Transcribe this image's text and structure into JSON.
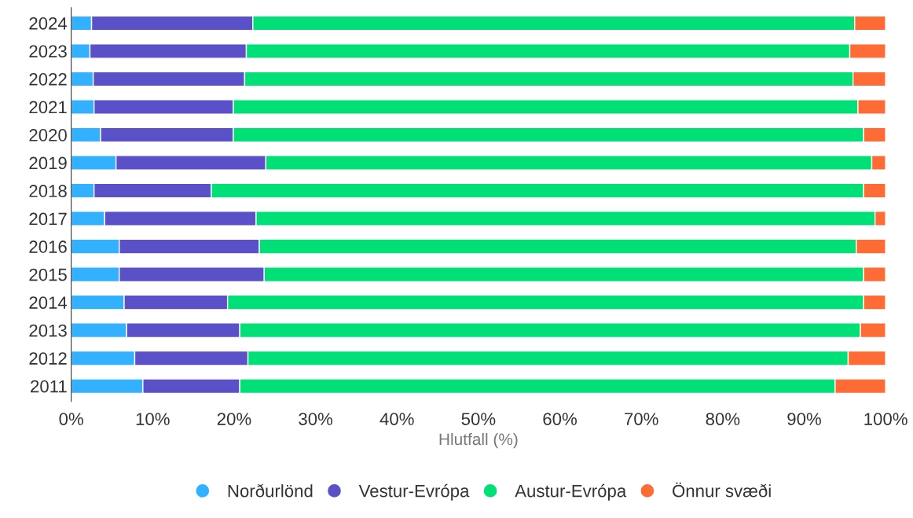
{
  "chart_data": {
    "type": "bar",
    "orientation": "horizontal",
    "stacked": true,
    "xlabel": "Hlutfall (%)",
    "categories": [
      "2024",
      "2023",
      "2022",
      "2021",
      "2020",
      "2019",
      "2018",
      "2017",
      "2016",
      "2015",
      "2014",
      "2013",
      "2012",
      "2011"
    ],
    "series": [
      {
        "name": "Norðurlönd",
        "color": "#33b1ff",
        "values": [
          2.5,
          2.3,
          2.7,
          2.8,
          3.6,
          5.5,
          2.8,
          4.1,
          5.9,
          5.9,
          6.5,
          6.8,
          7.8,
          8.8
        ]
      },
      {
        "name": "Vestur-Evrópa",
        "color": "#5a50c8",
        "values": [
          19.8,
          19.2,
          18.6,
          17.1,
          16.3,
          18.4,
          14.4,
          18.6,
          17.2,
          17.8,
          12.7,
          13.9,
          13.9,
          11.9
        ]
      },
      {
        "name": "Austur-Evrópa",
        "color": "#00e077",
        "values": [
          73.9,
          74.1,
          74.7,
          76.7,
          77.4,
          74.4,
          80.1,
          76.0,
          73.3,
          73.6,
          78.1,
          76.2,
          73.7,
          73.1
        ]
      },
      {
        "name": "Önnur svæði",
        "color": "#ff6b35",
        "values": [
          3.8,
          4.4,
          4.0,
          3.4,
          2.7,
          1.7,
          2.7,
          1.3,
          3.6,
          2.7,
          2.7,
          3.1,
          4.6,
          6.2
        ]
      }
    ],
    "xlim": [
      0,
      100
    ],
    "xticks": [
      {
        "value": 0,
        "label": "0%"
      },
      {
        "value": 10,
        "label": "10%"
      },
      {
        "value": 20,
        "label": "20%"
      },
      {
        "value": 30,
        "label": "30%"
      },
      {
        "value": 40,
        "label": "40%"
      },
      {
        "value": 50,
        "label": "50%"
      },
      {
        "value": 60,
        "label": "60%"
      },
      {
        "value": 70,
        "label": "70%"
      },
      {
        "value": 80,
        "label": "80%"
      },
      {
        "value": 90,
        "label": "90%"
      },
      {
        "value": 100,
        "label": "100%"
      }
    ],
    "legend": "bottom",
    "marker": "circle",
    "grid": false
  }
}
